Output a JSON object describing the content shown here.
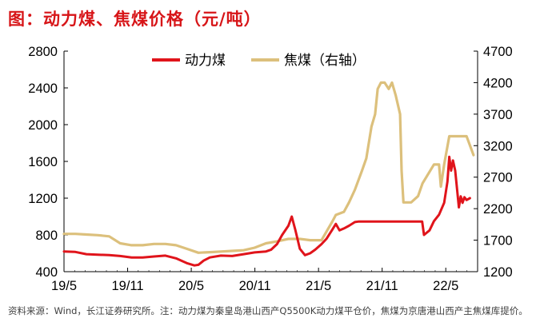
{
  "header": {
    "title": "图：动力煤、焦煤价格（元/吨）"
  },
  "footer": {
    "source": "资料来源：Wind，长江证券研究所。注：动力煤为秦皇岛港山西产Q5500K动力煤平仓价，焦煤为京唐港山西产主焦煤库提价。"
  },
  "colors": {
    "title": "#d71518",
    "thermal_coal": "#e0141b",
    "coking_coal": "#dcc07c"
  },
  "chart_data": {
    "type": "line",
    "title": "图：动力煤、焦煤价格（元/吨）",
    "x_tick_labels": [
      "19/5",
      "19/11",
      "20/5",
      "20/11",
      "21/5",
      "21/11",
      "22/5"
    ],
    "x_range": [
      "2019-05-01",
      "2022-05-31"
    ],
    "y_left": {
      "min": 400,
      "max": 2800,
      "ticks": [
        "400",
        "800",
        "1200",
        "1600",
        "2000",
        "2400",
        "2800"
      ]
    },
    "y_right": {
      "min": 1200,
      "max": 4700,
      "ticks": [
        "1200",
        "1700",
        "2200",
        "2700",
        "3200",
        "3700",
        "4200",
        "4700"
      ]
    },
    "legend": {
      "position": "top-center",
      "entries": [
        "动力煤",
        "焦煤（右轴）"
      ]
    },
    "grid": false,
    "series": [
      {
        "name": "动力煤",
        "axis": "left",
        "color": "#e0141b",
        "points": [
          [
            "2019-05-01",
            620
          ],
          [
            "2019-06-01",
            615
          ],
          [
            "2019-07-01",
            590
          ],
          [
            "2019-08-01",
            585
          ],
          [
            "2019-09-01",
            580
          ],
          [
            "2019-10-01",
            570
          ],
          [
            "2019-11-01",
            555
          ],
          [
            "2019-12-01",
            555
          ],
          [
            "2020-01-01",
            565
          ],
          [
            "2020-02-01",
            575
          ],
          [
            "2020-03-01",
            545
          ],
          [
            "2020-04-01",
            490
          ],
          [
            "2020-04-20",
            468
          ],
          [
            "2020-05-01",
            475
          ],
          [
            "2020-05-15",
            520
          ],
          [
            "2020-06-01",
            555
          ],
          [
            "2020-07-01",
            575
          ],
          [
            "2020-08-01",
            570
          ],
          [
            "2020-09-01",
            590
          ],
          [
            "2020-10-01",
            610
          ],
          [
            "2020-11-01",
            620
          ],
          [
            "2020-11-15",
            640
          ],
          [
            "2020-12-01",
            700
          ],
          [
            "2020-12-15",
            800
          ],
          [
            "2021-01-01",
            900
          ],
          [
            "2021-01-10",
            1000
          ],
          [
            "2021-01-20",
            850
          ],
          [
            "2021-02-01",
            650
          ],
          [
            "2021-02-15",
            580
          ],
          [
            "2021-03-01",
            600
          ],
          [
            "2021-03-15",
            640
          ],
          [
            "2021-04-01",
            700
          ],
          [
            "2021-04-15",
            760
          ],
          [
            "2021-05-01",
            860
          ],
          [
            "2021-05-10",
            920
          ],
          [
            "2021-05-20",
            850
          ],
          [
            "2021-06-01",
            870
          ],
          [
            "2021-06-15",
            900
          ],
          [
            "2021-07-01",
            940
          ],
          [
            "2021-07-10",
            945
          ],
          [
            "2021-08-01",
            945
          ],
          [
            "2021-09-01",
            945
          ],
          [
            "2021-10-01",
            945
          ],
          [
            "2021-11-01",
            945
          ],
          [
            "2021-12-01",
            945
          ],
          [
            "2021-12-31",
            945
          ],
          [
            "2022-01-05",
            800
          ],
          [
            "2022-01-20",
            850
          ],
          [
            "2022-02-01",
            950
          ],
          [
            "2022-02-15",
            1020
          ],
          [
            "2022-03-01",
            1150
          ],
          [
            "2022-03-10",
            1380
          ],
          [
            "2022-03-15",
            1650
          ],
          [
            "2022-03-20",
            1500
          ],
          [
            "2022-03-25",
            1610
          ],
          [
            "2022-03-31",
            1500
          ],
          [
            "2022-04-05",
            1300
          ],
          [
            "2022-04-10",
            1100
          ],
          [
            "2022-04-15",
            1220
          ],
          [
            "2022-04-20",
            1150
          ],
          [
            "2022-04-25",
            1210
          ],
          [
            "2022-05-01",
            1180
          ],
          [
            "2022-05-10",
            1200
          ]
        ]
      },
      {
        "name": "焦煤（右轴）",
        "axis": "right",
        "color": "#dcc07c",
        "points": [
          [
            "2019-05-01",
            1800
          ],
          [
            "2019-06-01",
            1800
          ],
          [
            "2019-07-01",
            1790
          ],
          [
            "2019-08-01",
            1780
          ],
          [
            "2019-09-01",
            1760
          ],
          [
            "2019-10-01",
            1650
          ],
          [
            "2019-11-01",
            1620
          ],
          [
            "2019-12-01",
            1620
          ],
          [
            "2020-01-01",
            1640
          ],
          [
            "2020-02-01",
            1640
          ],
          [
            "2020-03-01",
            1620
          ],
          [
            "2020-04-01",
            1560
          ],
          [
            "2020-05-01",
            1500
          ],
          [
            "2020-06-01",
            1510
          ],
          [
            "2020-07-01",
            1520
          ],
          [
            "2020-08-01",
            1530
          ],
          [
            "2020-09-01",
            1540
          ],
          [
            "2020-10-01",
            1580
          ],
          [
            "2020-11-01",
            1650
          ],
          [
            "2020-12-01",
            1680
          ],
          [
            "2021-01-01",
            1720
          ],
          [
            "2021-02-01",
            1720
          ],
          [
            "2021-03-01",
            1700
          ],
          [
            "2021-04-01",
            1700
          ],
          [
            "2021-05-01",
            2000
          ],
          [
            "2021-05-10",
            2100
          ],
          [
            "2021-06-01",
            2150
          ],
          [
            "2021-06-15",
            2300
          ],
          [
            "2021-07-01",
            2500
          ],
          [
            "2021-07-20",
            2800
          ],
          [
            "2021-08-01",
            3000
          ],
          [
            "2021-08-15",
            3500
          ],
          [
            "2021-08-25",
            3700
          ],
          [
            "2021-09-01",
            4100
          ],
          [
            "2021-09-10",
            4200
          ],
          [
            "2021-09-20",
            4200
          ],
          [
            "2021-10-01",
            4100
          ],
          [
            "2021-10-10",
            4200
          ],
          [
            "2021-10-20",
            4000
          ],
          [
            "2021-11-01",
            3700
          ],
          [
            "2021-11-05",
            2800
          ],
          [
            "2021-11-10",
            2300
          ],
          [
            "2021-12-01",
            2300
          ],
          [
            "2021-12-20",
            2400
          ],
          [
            "2022-01-01",
            2600
          ],
          [
            "2022-02-01",
            2900
          ],
          [
            "2022-02-15",
            2900
          ],
          [
            "2022-02-20",
            2550
          ],
          [
            "2022-03-01",
            2900
          ],
          [
            "2022-03-15",
            3350
          ],
          [
            "2022-04-01",
            3350
          ],
          [
            "2022-05-01",
            3350
          ],
          [
            "2022-05-20",
            3050
          ]
        ]
      }
    ]
  }
}
